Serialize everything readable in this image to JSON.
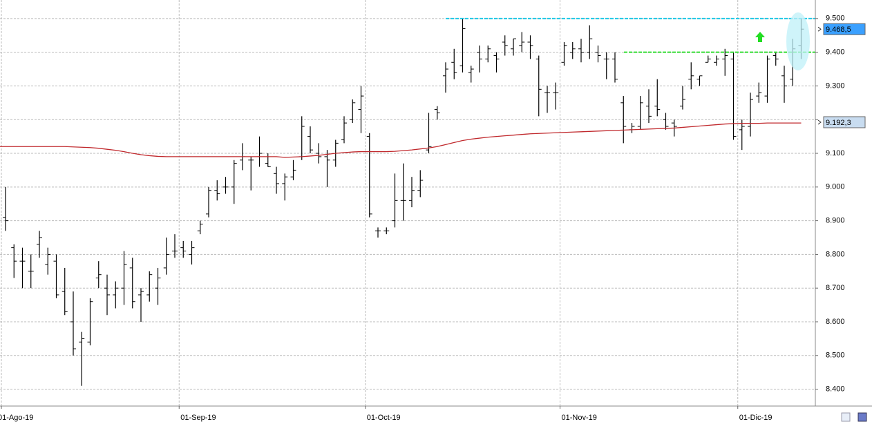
{
  "chart_data": {
    "type": "ohlc",
    "categories": [
      "01-Ago-19",
      null,
      null,
      null,
      null,
      null,
      null,
      null,
      null,
      null,
      null,
      null,
      null,
      null,
      null,
      null,
      null,
      null,
      null,
      null,
      null,
      "01-Sep-19",
      null,
      null,
      null,
      null,
      null,
      null,
      null,
      null,
      null,
      null,
      null,
      null,
      null,
      null,
      null,
      null,
      null,
      null,
      null,
      null,
      null,
      "01-Oct-19",
      null,
      null,
      null,
      null,
      null,
      null,
      null,
      null,
      null,
      null,
      null,
      null,
      null,
      null,
      null,
      null,
      null,
      null,
      null,
      null,
      null,
      null,
      "01-Nov-19",
      null,
      null,
      null,
      null,
      null,
      null,
      null,
      null,
      null,
      null,
      null,
      null,
      null,
      null,
      null,
      null,
      null,
      null,
      null,
      null,
      "01-Dic-19",
      null,
      null,
      null,
      null,
      null,
      null,
      null
    ],
    "ohlc": {
      "color": "#000000",
      "open": [
        8910,
        8820,
        8780,
        8750,
        8830,
        8770,
        8780,
        8690,
        8600,
        8540,
        8540,
        8730,
        8700,
        8680,
        8700,
        8760,
        8680,
        8680,
        8700,
        8760,
        8810,
        8820,
        8800,
        8870,
        8920,
        8990,
        9000,
        9000,
        9080,
        9080,
        9090,
        9070,
        9040,
        9010,
        9030,
        9090,
        9150,
        9100,
        9090,
        9080,
        9140,
        9200,
        9230,
        9150,
        8870,
        8870,
        8900,
        8960,
        8960,
        8990,
        9110,
        9230,
        9330,
        9370,
        9360,
        9340,
        9400,
        9380,
        9390,
        9430,
        9410,
        9420,
        9430,
        9380,
        9280,
        9280,
        9370,
        9400,
        9410,
        9400,
        9400,
        9380,
        9380,
        9250,
        9170,
        9180,
        9240,
        9240,
        9200,
        9190,
        9240,
        9320,
        9320,
        9370,
        9370,
        9380,
        9380,
        9170,
        9180,
        9270,
        9270,
        9390,
        9330,
        9320,
        9420
      ],
      "high": [
        9000,
        8830,
        8820,
        8800,
        8870,
        8820,
        8800,
        8760,
        8690,
        8570,
        8670,
        8780,
        8740,
        8720,
        8810,
        8790,
        8700,
        8750,
        8760,
        8850,
        8860,
        8840,
        8840,
        8900,
        9000,
        9020,
        9030,
        9080,
        9130,
        9090,
        9150,
        9100,
        9060,
        9040,
        9080,
        9210,
        9180,
        9130,
        9110,
        9140,
        9210,
        9260,
        9300,
        9160,
        8880,
        8880,
        9040,
        9070,
        9030,
        9050,
        9220,
        9240,
        9370,
        9410,
        9500,
        9360,
        9420,
        9420,
        9400,
        9450,
        9440,
        9460,
        9450,
        9390,
        9300,
        9310,
        9430,
        9430,
        9440,
        9480,
        9420,
        9400,
        9400,
        9270,
        9190,
        9270,
        9290,
        9320,
        9220,
        9200,
        9300,
        9370,
        9330,
        9390,
        9390,
        9410,
        9400,
        9200,
        9280,
        9310,
        9390,
        9400,
        9360,
        9440,
        9500
      ],
      "low": [
        8870,
        8730,
        8700,
        8700,
        8790,
        8740,
        8670,
        8620,
        8500,
        8410,
        8530,
        8700,
        8620,
        8640,
        8650,
        8640,
        8600,
        8660,
        8650,
        8740,
        8790,
        8790,
        8770,
        8860,
        8910,
        8960,
        8980,
        8950,
        9050,
        8990,
        9060,
        9060,
        8980,
        8960,
        9020,
        9080,
        9100,
        9070,
        9000,
        9060,
        9130,
        9190,
        9160,
        8910,
        8850,
        8860,
        8880,
        8900,
        8940,
        8970,
        9100,
        9200,
        9280,
        9320,
        9340,
        9310,
        9340,
        9370,
        9340,
        9390,
        9390,
        9400,
        9380,
        9210,
        9220,
        9230,
        9360,
        9380,
        9370,
        9380,
        9370,
        9320,
        9310,
        9130,
        9160,
        9170,
        9190,
        9210,
        9170,
        9150,
        9230,
        9290,
        9300,
        9370,
        9360,
        9330,
        9140,
        9110,
        9150,
        9250,
        9250,
        9360,
        9250,
        9300,
        9380
      ],
      "close": [
        8900,
        8780,
        8780,
        8750,
        8850,
        8800,
        8680,
        8630,
        8520,
        8550,
        8660,
        8740,
        8680,
        8700,
        8770,
        8660,
        8690,
        8740,
        8730,
        8800,
        8810,
        8810,
        8820,
        8890,
        8990,
        8980,
        9000,
        9070,
        9090,
        9080,
        9100,
        9060,
        9010,
        9030,
        9050,
        9180,
        9110,
        9090,
        9080,
        9130,
        9190,
        9250,
        9270,
        8920,
        8870,
        8870,
        8960,
        8960,
        8990,
        9020,
        9120,
        9220,
        9350,
        9340,
        9470,
        9350,
        9380,
        9410,
        9380,
        9420,
        9440,
        9430,
        9420,
        9290,
        9280,
        9280,
        9420,
        9410,
        9400,
        9440,
        9390,
        9380,
        9320,
        9180,
        9180,
        9250,
        9210,
        9230,
        9180,
        9180,
        9260,
        9330,
        9330,
        9380,
        9380,
        9390,
        9150,
        9180,
        9260,
        9280,
        9380,
        9380,
        9300,
        9410,
        9468.5
      ]
    },
    "moving_average": {
      "color": "#c0282c",
      "values": [
        9120,
        9120,
        9120,
        9120,
        9120,
        9120,
        9120,
        9120,
        9119,
        9118,
        9117,
        9115,
        9112,
        9109,
        9105,
        9100,
        9096,
        9093,
        9091,
        9090,
        9090,
        9090,
        9090,
        9090,
        9090,
        9090,
        9090,
        9090,
        9090,
        9090,
        9090,
        9090,
        9090,
        9088,
        9089,
        9090,
        9092,
        9094,
        9097,
        9100,
        9102,
        9104,
        9105,
        9105,
        9105,
        9105,
        9106,
        9108,
        9110,
        9113,
        9116,
        9120,
        9126,
        9132,
        9138,
        9142,
        9145,
        9148,
        9150,
        9152,
        9154,
        9156,
        9158,
        9159,
        9160,
        9161,
        9162,
        9163,
        9164,
        9165,
        9166,
        9167,
        9168,
        9169,
        9170,
        9171,
        9172,
        9173,
        9174,
        9175,
        9177,
        9179,
        9181,
        9183,
        9185,
        9187,
        9188,
        9189,
        9189,
        9189,
        9190,
        9190,
        9190,
        9190,
        9190
      ]
    },
    "levels": [
      {
        "value": 9500,
        "color": "#1ec8e6"
      },
      {
        "value": 9400,
        "color": "#33dd33"
      }
    ],
    "price_labels": [
      {
        "value": 9468.5,
        "label": "9.468,5",
        "color": "#3aa0ff"
      },
      {
        "value": 9192.3,
        "label": "9.192,3",
        "color": "#c8dcf0"
      }
    ],
    "ylim": [
      8350,
      9555
    ],
    "yticks": [
      {
        "value": 9500,
        "label": "9.500"
      },
      {
        "value": 9400,
        "label": "9.400"
      },
      {
        "value": 9300,
        "label": "9.300"
      },
      {
        "value": 9200,
        "label": "9.200"
      },
      {
        "value": 9100,
        "label": "9.100"
      },
      {
        "value": 9000,
        "label": "9.000"
      },
      {
        "value": 8900,
        "label": "8.900"
      },
      {
        "value": 8800,
        "label": "8.800"
      },
      {
        "value": 8700,
        "label": "8.700"
      },
      {
        "value": 8600,
        "label": "8.600"
      },
      {
        "value": 8500,
        "label": "8.500"
      },
      {
        "value": 8400,
        "label": "8.400"
      }
    ],
    "grid": true
  }
}
